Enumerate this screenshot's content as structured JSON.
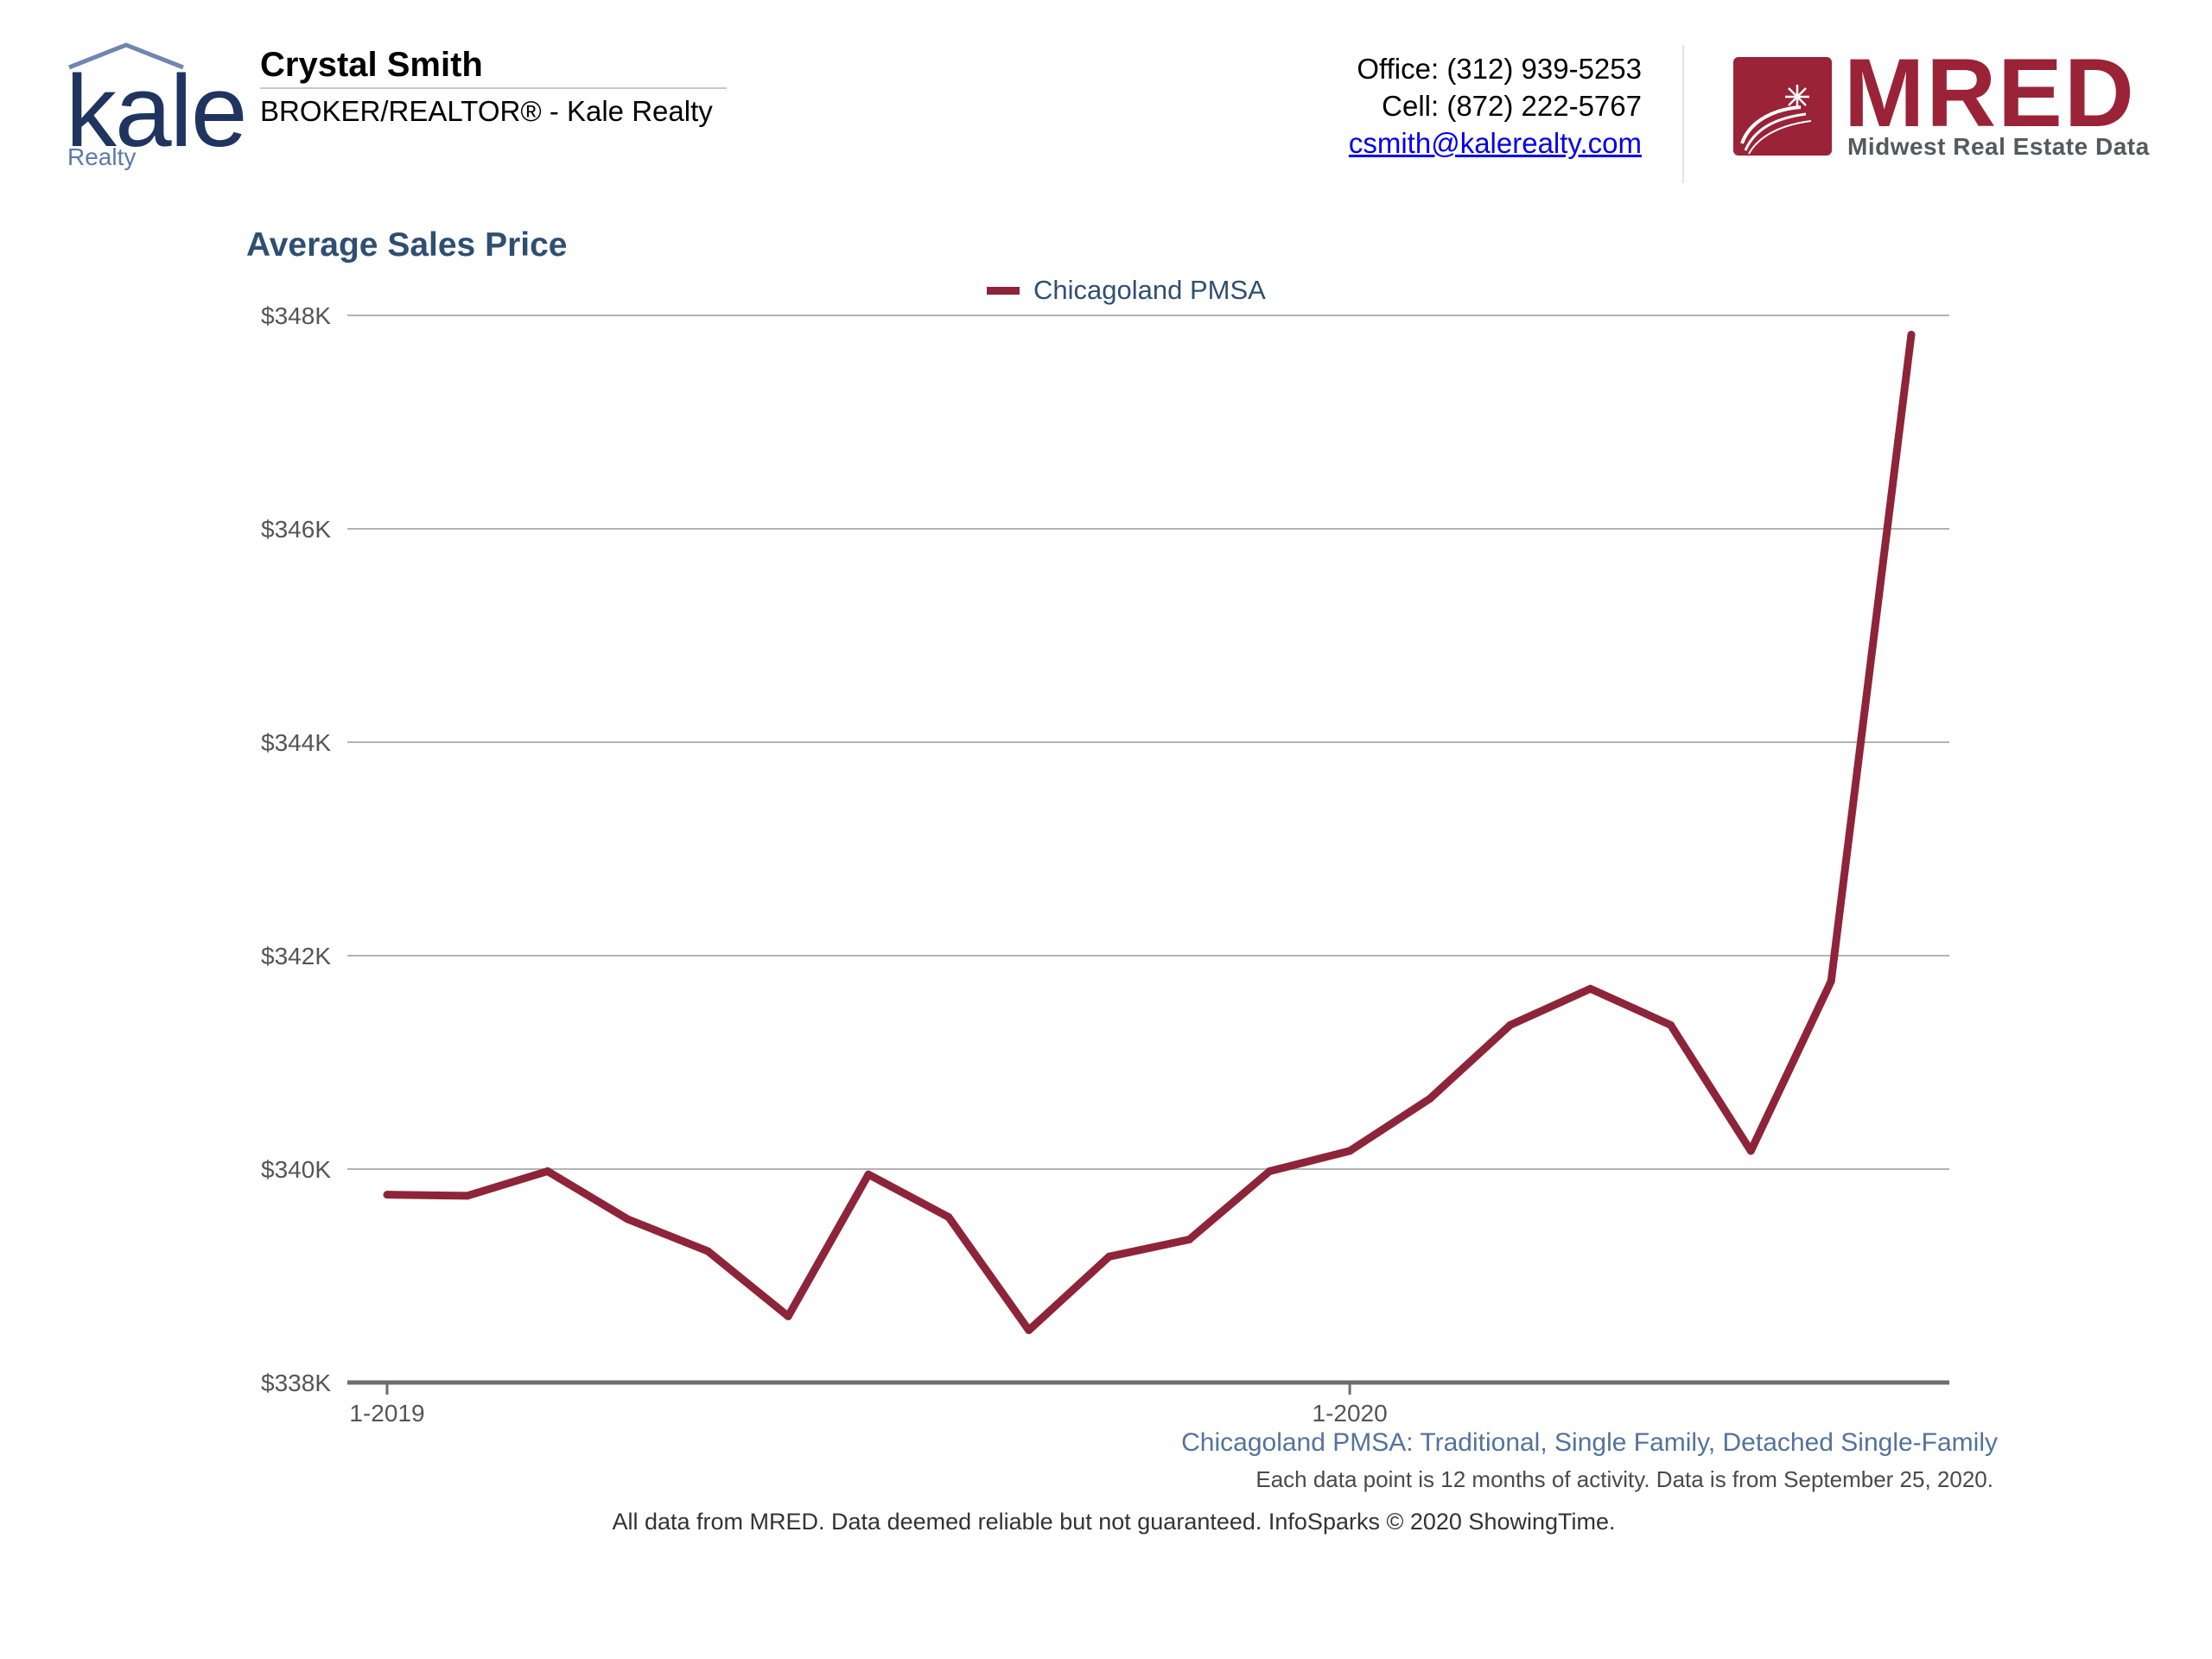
{
  "header": {
    "logo_text": "kale",
    "logo_subtext": "Realty",
    "agent_name": "Crystal Smith",
    "agent_title": "BROKER/REALTOR® - Kale Realty",
    "office": "Office: (312) 939-5253",
    "cell": "Cell: (872) 222-5767",
    "email": "csmith@kalerealty.com",
    "mred_logo_text": "MRED",
    "mred_logo_subtext": "Midwest Real Estate Data"
  },
  "colors": {
    "series": "#8e2439",
    "title": "#2f4f72",
    "grid": "#b3b3b3",
    "axis": "#6e6e6e",
    "brand_kale": "#1f3560",
    "brand_mred": "#9a2338"
  },
  "chart_data": {
    "type": "line",
    "title": "Average Sales Price",
    "subtitle": "Chicagoland PMSA: Traditional, Single Family, Detached Single-Family",
    "note": "Each data point is 12 months of activity. Data is from September 25, 2020.",
    "xlabel": "",
    "ylabel": "",
    "x": [
      "1-2019",
      "2-2019",
      "3-2019",
      "4-2019",
      "5-2019",
      "6-2019",
      "7-2019",
      "8-2019",
      "9-2019",
      "10-2019",
      "11-2019",
      "12-2019",
      "1-2020",
      "2-2020",
      "3-2020",
      "4-2020",
      "5-2020",
      "6-2020",
      "7-2020",
      "8-2020"
    ],
    "x_tick_labels": [
      "1-2019",
      "1-2020"
    ],
    "y_tick_labels": [
      "$338K",
      "$340K",
      "$342K",
      "$344K",
      "$346K",
      "$348K"
    ],
    "y_ticks": [
      338000,
      340000,
      342000,
      344000,
      346000,
      348000
    ],
    "ylim": [
      338000,
      348000
    ],
    "grid": true,
    "legend_position": "top-center",
    "series": [
      {
        "name": "Chicagoland PMSA",
        "values": [
          339760,
          339750,
          339980,
          339530,
          339230,
          338620,
          339950,
          339550,
          338490,
          339180,
          339340,
          339980,
          340170,
          340660,
          341350,
          341690,
          341350,
          340170,
          341760,
          347820
        ]
      }
    ]
  },
  "footer": "All data from MRED. Data deemed reliable but not guaranteed. InfoSparks © 2020 ShowingTime."
}
